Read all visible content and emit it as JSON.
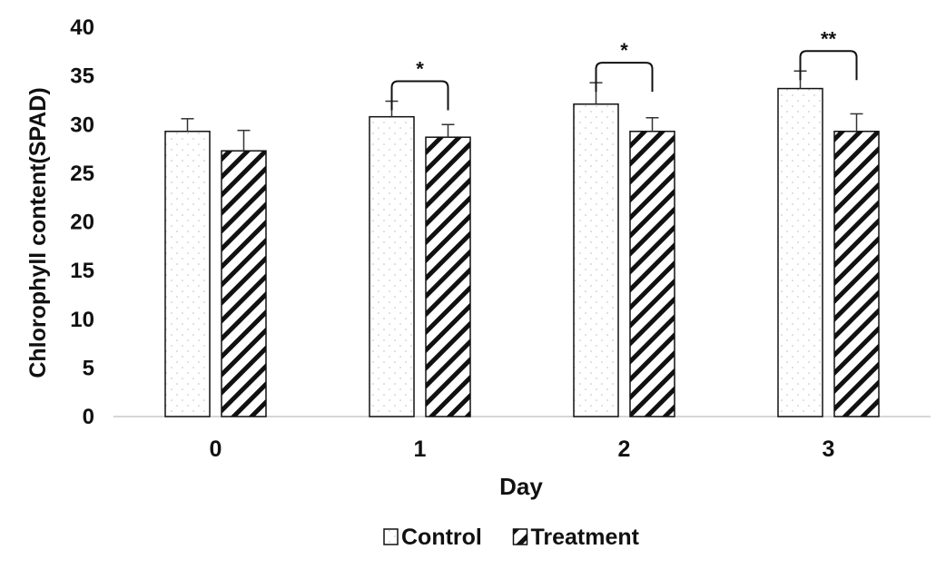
{
  "chart_data": {
    "type": "bar",
    "xlabel": "Day",
    "ylabel": "Chlorophyll content(SPAD)",
    "ylim": [
      0,
      40
    ],
    "yticks": [
      0,
      5,
      10,
      15,
      20,
      25,
      30,
      35,
      40
    ],
    "categories": [
      "0",
      "1",
      "2",
      "3"
    ],
    "series": [
      {
        "name": "Control",
        "pattern": "dots",
        "values": [
          29.3,
          30.8,
          32.1,
          33.7
        ],
        "errors": [
          1.3,
          1.6,
          2.2,
          1.8
        ]
      },
      {
        "name": "Treatment",
        "pattern": "hatch",
        "values": [
          27.3,
          28.7,
          29.3,
          29.3
        ],
        "errors": [
          2.1,
          1.3,
          1.4,
          1.8
        ]
      }
    ],
    "significance": [
      {
        "category": "0",
        "label": ""
      },
      {
        "category": "1",
        "label": "*"
      },
      {
        "category": "2",
        "label": "*"
      },
      {
        "category": "3",
        "label": "**"
      }
    ],
    "legend_position": "bottom-center",
    "grid": false,
    "colors": {
      "bar_edge": "#111111",
      "axis": "#c8c8c8",
      "hatch": "#111111",
      "dots": "#bdbdbd"
    }
  }
}
